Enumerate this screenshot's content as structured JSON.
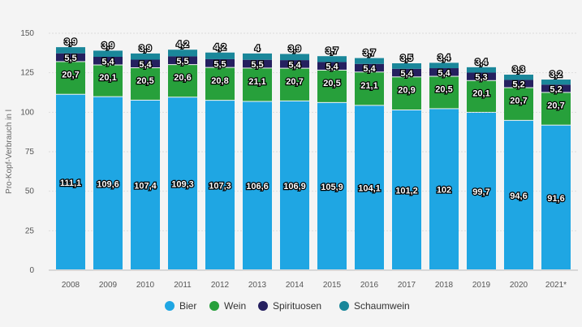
{
  "chart_data": {
    "type": "bar",
    "stacked": true,
    "ylabel": "Pro-Kopf-Verbrauch in l",
    "xlabel": "",
    "ylim": [
      0,
      150
    ],
    "yticks": [
      0,
      25,
      50,
      75,
      100,
      125,
      150
    ],
    "grid": true,
    "legend_position": "bottom",
    "categories": [
      "2008",
      "2009",
      "2010",
      "2011",
      "2012",
      "2013",
      "2014",
      "2015",
      "2016",
      "2017",
      "2018",
      "2019",
      "2020",
      "2021*"
    ],
    "series": [
      {
        "name": "Bier",
        "color": "#1fa6e3",
        "values": [
          111.1,
          109.6,
          107.4,
          109.3,
          107.3,
          106.6,
          106.9,
          105.9,
          104.1,
          101.2,
          102,
          99.7,
          94.6,
          91.6
        ],
        "labels": [
          "111,1",
          "109,6",
          "107,4",
          "109,3",
          "107,3",
          "106,6",
          "106,9",
          "105,9",
          "104,1",
          "101,2",
          "102",
          "99,7",
          "94,6",
          "91,6"
        ]
      },
      {
        "name": "Wein",
        "color": "#27a03b",
        "values": [
          20.7,
          20.1,
          20.5,
          20.6,
          20.8,
          21.1,
          20.7,
          20.5,
          21.1,
          20.9,
          20.5,
          20.1,
          20.7,
          20.7
        ],
        "labels": [
          "20,7",
          "20,1",
          "20,5",
          "20,6",
          "20,8",
          "21,1",
          "20,7",
          "20,5",
          "21,1",
          "20,9",
          "20,5",
          "20,1",
          "20,7",
          "20,7"
        ]
      },
      {
        "name": "Spirituosen",
        "color": "#25205f",
        "values": [
          5.5,
          5.4,
          5.4,
          5.5,
          5.5,
          5.5,
          5.4,
          5.4,
          5.4,
          5.4,
          5.4,
          5.3,
          5.2,
          5.2
        ],
        "labels": [
          "5,5",
          "5,4",
          "5,4",
          "5,5",
          "5,5",
          "5,5",
          "5,4",
          "5,4",
          "5,4",
          "5,4",
          "5,4",
          "5,3",
          "5,2",
          "5,2"
        ]
      },
      {
        "name": "Schaumwein",
        "color": "#1a879a",
        "values": [
          3.9,
          3.9,
          3.9,
          4.2,
          4.2,
          4,
          3.9,
          3.7,
          3.7,
          3.5,
          3.4,
          3.4,
          3.3,
          3.2
        ],
        "labels": [
          "3,9",
          "3,9",
          "3,9",
          "4,2",
          "4,2",
          "4",
          "3,9",
          "3,7",
          "3,7",
          "3,5",
          "3,4",
          "3,4",
          "3,3",
          "3,2"
        ]
      }
    ]
  }
}
